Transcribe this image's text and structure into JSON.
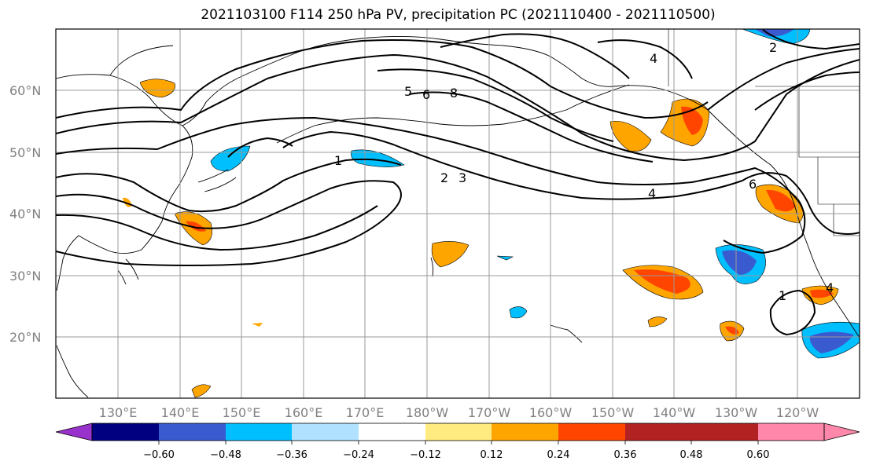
{
  "title": "2021103100 F114 250 hPa PV, precipitation PC (2021110400 - 2021110500)",
  "lat_labels": [
    "60°N",
    "50°N",
    "40°N",
    "30°N",
    "20°N"
  ],
  "lon_labels": [
    "130°E",
    "140°E",
    "150°E",
    "160°E",
    "170°E",
    "180°W",
    "170°W",
    "160°W",
    "150°W",
    "140°W",
    "130°W",
    "120°W"
  ],
  "colorbar": {
    "ticks": [
      "−0.60",
      "−0.48",
      "−0.36",
      "−0.24",
      "−0.12",
      "0.12",
      "0.24",
      "0.36",
      "0.48",
      "0.60"
    ],
    "colors": [
      "#9932cc",
      "#000080",
      "#3a5bcf",
      "#00bfff",
      "#b0e2ff",
      "#ffffff",
      "#ffeb80",
      "#ffa500",
      "#ff4500",
      "#b22222",
      "#ff88aa"
    ]
  },
  "contour_labels": [
    "1",
    "2",
    "3",
    "4",
    "5",
    "6",
    "8",
    "4",
    "6",
    "1",
    "2",
    "4"
  ]
}
